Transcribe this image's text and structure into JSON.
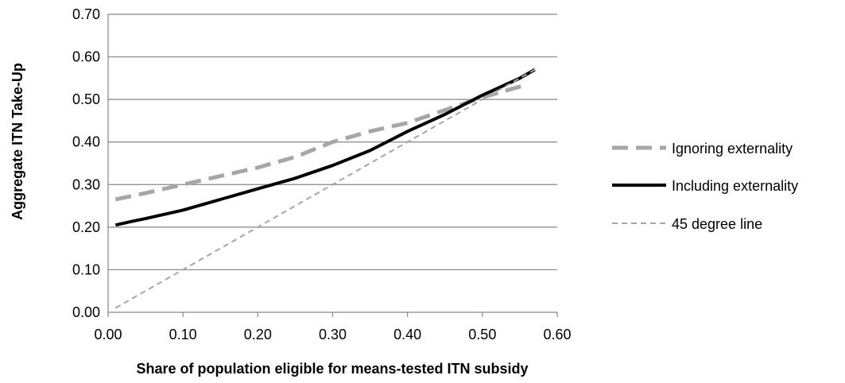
{
  "chart_data": {
    "type": "line",
    "title": "",
    "xlabel": "Share of population eligible for means-tested ITN subsidy",
    "ylabel": "Aggregate ITN Take-Up",
    "xlim": [
      0,
      0.6
    ],
    "ylim": [
      0,
      0.7
    ],
    "x_ticks": [
      "0.00",
      "0.10",
      "0.20",
      "0.30",
      "0.40",
      "0.50",
      "0.60"
    ],
    "y_ticks": [
      "0.00",
      "0.10",
      "0.20",
      "0.30",
      "0.40",
      "0.50",
      "0.60",
      "0.70"
    ],
    "grid": "horizontal",
    "legend_position": "right",
    "series": [
      {
        "name": "Ignoring externality",
        "color": "#a6a6a6",
        "style": "dashed-thick",
        "x": [
          0.01,
          0.05,
          0.1,
          0.15,
          0.2,
          0.25,
          0.3,
          0.35,
          0.4,
          0.45,
          0.5,
          0.56
        ],
        "y": [
          0.265,
          0.28,
          0.3,
          0.32,
          0.34,
          0.365,
          0.4,
          0.425,
          0.445,
          0.475,
          0.505,
          0.535
        ]
      },
      {
        "name": "Including externality",
        "color": "#000000",
        "style": "solid",
        "x": [
          0.01,
          0.03,
          0.05,
          0.1,
          0.15,
          0.2,
          0.25,
          0.3,
          0.35,
          0.4,
          0.45,
          0.5,
          0.55,
          0.57
        ],
        "y": [
          0.205,
          0.213,
          0.22,
          0.24,
          0.265,
          0.29,
          0.315,
          0.345,
          0.38,
          0.425,
          0.465,
          0.51,
          0.55,
          0.57
        ]
      },
      {
        "name": "45 degree line",
        "color": "#a6a6a6",
        "style": "dashed-thin",
        "x": [
          0.01,
          0.57
        ],
        "y": [
          0.01,
          0.57
        ]
      }
    ]
  }
}
